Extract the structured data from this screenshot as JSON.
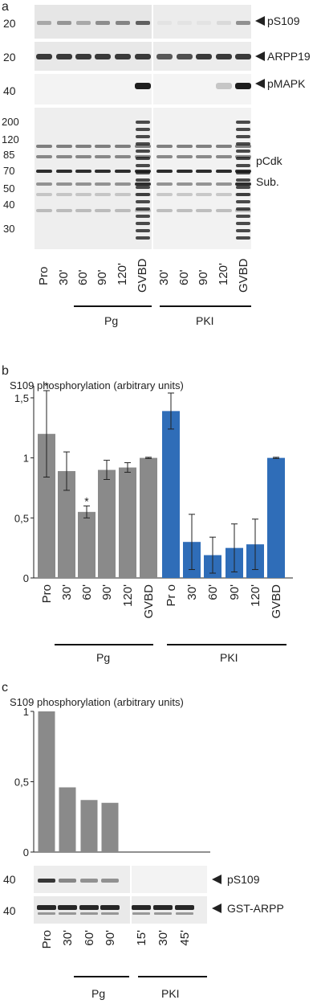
{
  "panels": [
    {
      "letter": "a",
      "blot_rows": [
        {
          "marker": "20",
          "label": "pS109"
        },
        {
          "marker": "20",
          "label": "ARPP19"
        },
        {
          "marker": "40",
          "label": "pMAPK"
        }
      ],
      "marker_ladder": [
        "200",
        "120",
        "85",
        "70",
        "50",
        "40",
        "30"
      ],
      "bottom_labels": [
        "pCdk",
        "Sub."
      ],
      "lanes_pg": [
        "Pro",
        "30'",
        "60'",
        "90'",
        "120'",
        "GVBD"
      ],
      "lanes_pki": [
        "30'",
        "60'",
        "90'",
        "120'",
        "GVBD"
      ],
      "groups": [
        "Pg",
        "PKI"
      ]
    },
    {
      "letter": "b"
    },
    {
      "letter": "c"
    }
  ],
  "chart_data": [
    {
      "type": "bar",
      "title": "S109 phosphorylation (arbitrary units)",
      "categories": [
        "Pro",
        "30'",
        "60'",
        "90'",
        "120'",
        "GVBD",
        "Pr o",
        "30'",
        "60'",
        "90'",
        "120'",
        "GVBD"
      ],
      "values": [
        1.2,
        0.89,
        0.55,
        0.9,
        0.92,
        1.0,
        1.39,
        0.3,
        0.19,
        0.25,
        0.28,
        1.0
      ],
      "errors": [
        0.36,
        0.16,
        0.05,
        0.08,
        0.04,
        0.005,
        0.15,
        0.23,
        0.15,
        0.2,
        0.21,
        0.005
      ],
      "significance": [
        "*",
        "",
        "*",
        "",
        "",
        "",
        "",
        "",
        "",
        "",
        "",
        ""
      ],
      "colors": [
        "#8a8a8a",
        "#8a8a8a",
        "#8a8a8a",
        "#8a8a8a",
        "#8a8a8a",
        "#8a8a8a",
        "#2f6db8",
        "#2f6db8",
        "#2f6db8",
        "#2f6db8",
        "#2f6db8",
        "#2f6db8"
      ],
      "yticks": [
        "0",
        "0,5",
        "1",
        "1,5"
      ],
      "ylim": [
        0,
        1.6
      ],
      "groups": [
        "Pg",
        "PKI"
      ]
    },
    {
      "type": "bar",
      "title": "S109 phosphorylation (arbitrary units)",
      "categories": [
        "Pro",
        "30'",
        "60'",
        "90'",
        "15'",
        "30'",
        "45'"
      ],
      "values": [
        1.0,
        0.46,
        0.37,
        0.35,
        0,
        0,
        0
      ],
      "colors": [
        "#8a8a8a",
        "#8a8a8a",
        "#8a8a8a",
        "#8a8a8a",
        "#8a8a8a",
        "#8a8a8a",
        "#8a8a8a"
      ],
      "yticks": [
        "0",
        "0,5",
        "1"
      ],
      "ylim": [
        0,
        1.0
      ],
      "blot_rows": [
        {
          "marker": "40",
          "label": "pS109"
        },
        {
          "marker": "40",
          "label": "GST-ARPP"
        }
      ],
      "groups": [
        "Pg",
        "PKI"
      ]
    }
  ]
}
